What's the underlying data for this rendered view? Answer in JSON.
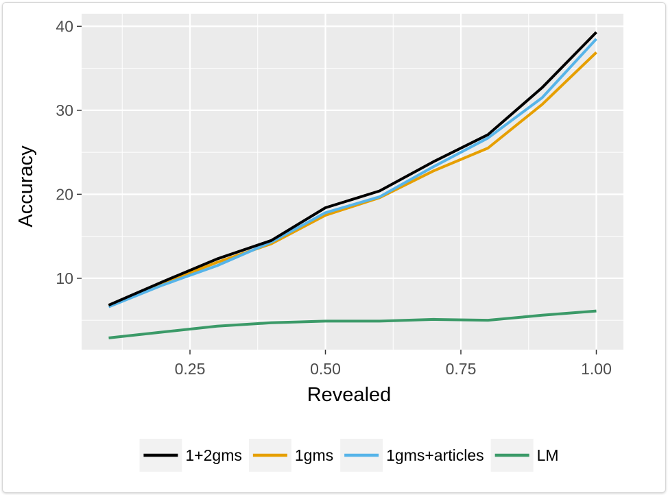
{
  "chart_data": {
    "type": "line",
    "title": "",
    "xlabel": "Revealed",
    "ylabel": "Accuracy",
    "xlim": [
      0.05,
      1.05
    ],
    "ylim": [
      1.5,
      41.5
    ],
    "x_ticks": [
      0.25,
      0.5,
      0.75,
      1.0
    ],
    "x_tick_labels": [
      "0.25",
      "0.50",
      "0.75",
      "1.00"
    ],
    "y_ticks": [
      10,
      20,
      30,
      40
    ],
    "y_tick_labels": [
      "10",
      "20",
      "30",
      "40"
    ],
    "grid": true,
    "legend_position": "bottom",
    "x": [
      0.1,
      0.2,
      0.3,
      0.4,
      0.5,
      0.6,
      0.7,
      0.8,
      0.9,
      1.0
    ],
    "series": [
      {
        "name": "1+2gms",
        "color": "#000000",
        "values": [
          6.8,
          9.6,
          12.3,
          14.5,
          18.4,
          20.4,
          23.9,
          27.1,
          32.7,
          39.3
        ]
      },
      {
        "name": "1gms",
        "color": "#E69F00",
        "values": [
          6.7,
          9.4,
          11.9,
          14.1,
          17.5,
          19.6,
          22.8,
          25.5,
          30.7,
          36.9
        ]
      },
      {
        "name": "1gms+articles",
        "color": "#56B4E9",
        "values": [
          6.6,
          9.2,
          11.5,
          14.3,
          17.8,
          19.7,
          23.3,
          26.7,
          31.5,
          38.5
        ]
      },
      {
        "name": "LM",
        "color": "#3B9A68",
        "values": [
          2.9,
          3.6,
          4.3,
          4.7,
          4.9,
          4.9,
          5.1,
          5.0,
          5.6,
          6.1
        ]
      }
    ]
  }
}
